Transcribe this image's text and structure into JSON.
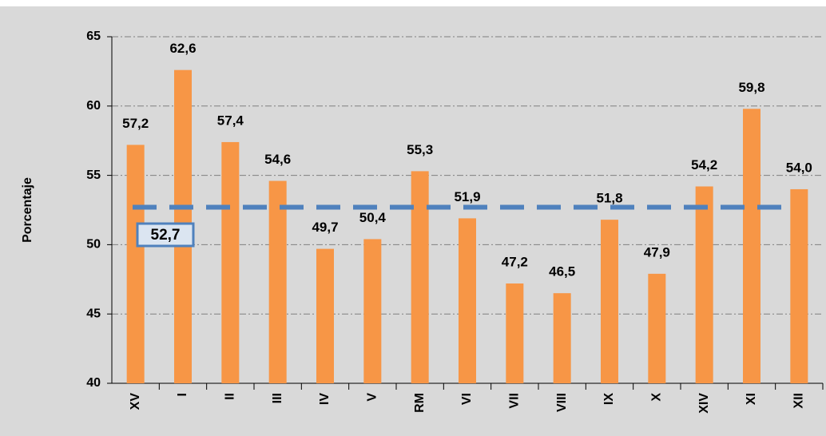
{
  "chart_data": {
    "type": "bar",
    "y_label": "Porcentaje",
    "categories": [
      "XV",
      "I",
      "II",
      "III",
      "IV",
      "V",
      "RM",
      "VI",
      "VII",
      "VIII",
      "IX",
      "X",
      "XIV",
      "XI",
      "XII"
    ],
    "values": [
      57.2,
      62.6,
      57.4,
      54.6,
      49.7,
      50.4,
      55.3,
      51.9,
      47.2,
      46.5,
      51.8,
      47.9,
      54.2,
      59.8,
      54.0
    ],
    "value_labels": [
      "57,2",
      "62,6",
      "57,4",
      "54,6",
      "49,7",
      "50,4",
      "55,3",
      "51,9",
      "47,2",
      "46,5",
      "51,8",
      "47,9",
      "54,2",
      "59,8",
      "54,0"
    ],
    "color": "#f79646",
    "reference_line": {
      "value": 52.7,
      "label": "52,7",
      "color": "#4f81bd"
    },
    "ylim": [
      40,
      65
    ],
    "yticks": [
      40,
      45,
      50,
      55,
      60,
      65
    ],
    "grid": true
  }
}
